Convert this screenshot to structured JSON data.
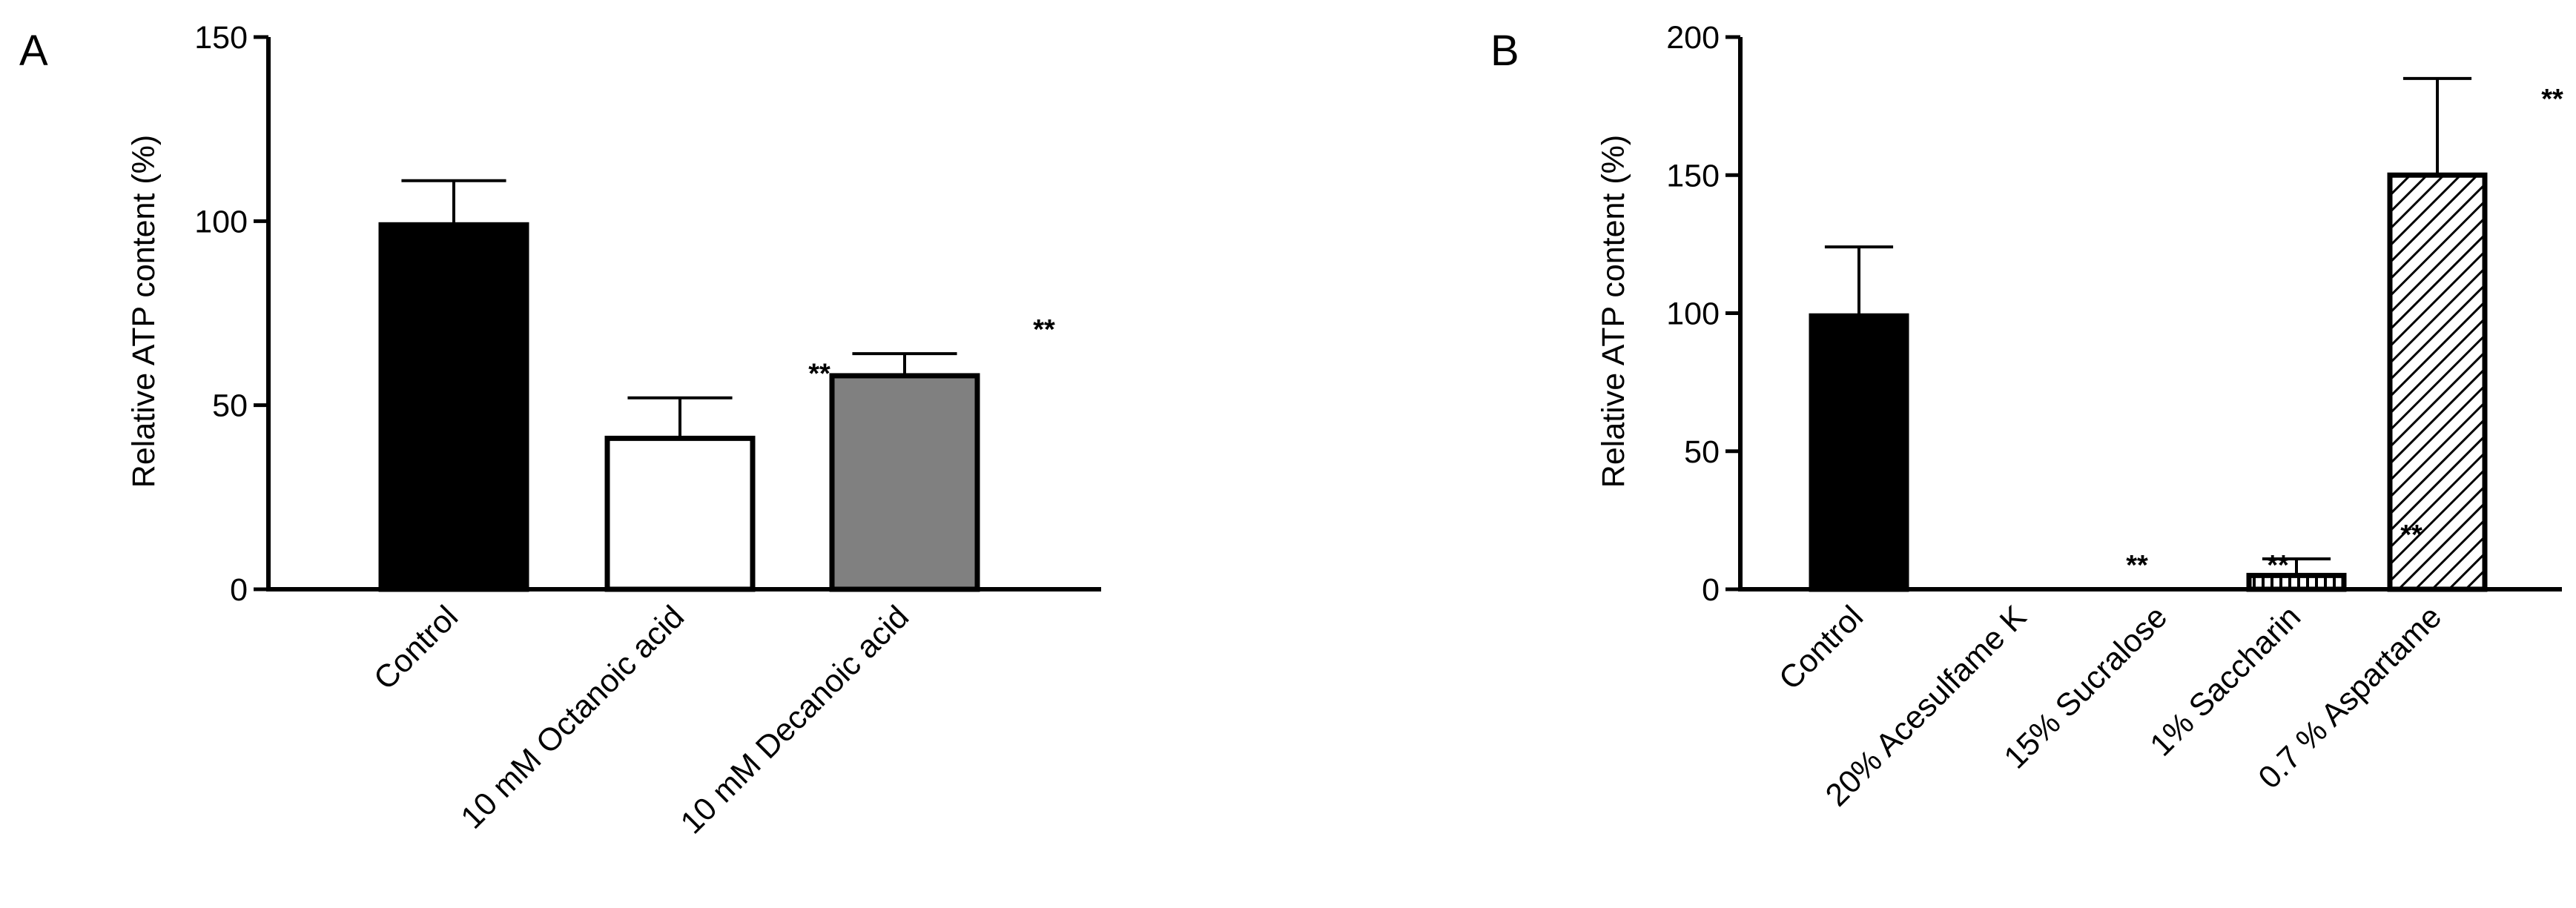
{
  "chart_data": [
    {
      "panel_label": "A",
      "type": "bar",
      "ylabel": "Relative ATP content (%)",
      "ylim": [
        0,
        150
      ],
      "yticks": [
        0,
        50,
        100,
        150
      ],
      "categories": [
        "Control",
        "10 mM Octanoic acid",
        "10 mM Decanoic acid"
      ],
      "values": [
        99,
        41,
        58
      ],
      "errors": [
        12,
        11,
        6
      ],
      "fills": [
        "black",
        "white",
        "gray"
      ],
      "annotations": [
        "",
        "**",
        "**"
      ],
      "grid": false
    },
    {
      "panel_label": "B",
      "type": "bar",
      "ylabel": "Relative ATP content (%)",
      "ylim": [
        0,
        200
      ],
      "yticks": [
        0,
        50,
        100,
        150,
        200
      ],
      "categories": [
        "Control",
        "20% Acesulfame K",
        "15% Sucralose",
        "1% Saccharin",
        "0.7 % Aspartame"
      ],
      "values": [
        99,
        0,
        0,
        5,
        150
      ],
      "errors": [
        25,
        0,
        0,
        6,
        35
      ],
      "fills": [
        "black",
        "none",
        "none",
        "vertical-hatch",
        "diagonal-hatch"
      ],
      "annotations": [
        "",
        "**",
        "**",
        "**",
        "**"
      ],
      "grid": false
    }
  ]
}
